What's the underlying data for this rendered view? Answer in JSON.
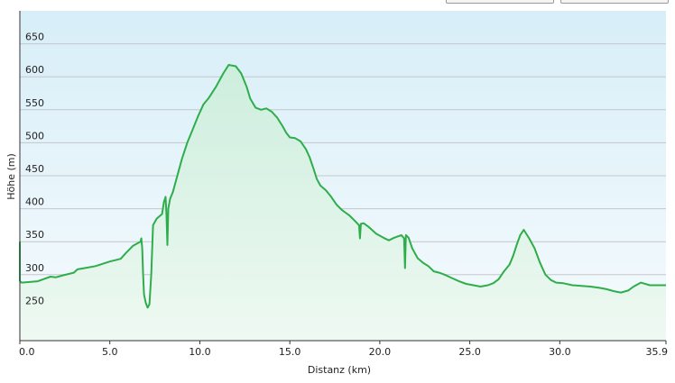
{
  "chart_data": {
    "type": "area",
    "title": "",
    "xlabel": "Distanz  (km)",
    "ylabel": "Höhe (m)",
    "xlim": [
      0,
      35.9
    ],
    "ylim": [
      200,
      700
    ],
    "x_ticks": [
      0,
      5,
      10,
      15,
      20,
      25,
      30,
      35.9
    ],
    "x_tick_labels": [
      "0.0",
      "5.0",
      "10.0",
      "15.0",
      "20.0",
      "25.0",
      "30.0",
      "35.9"
    ],
    "y_ticks": [
      250,
      300,
      350,
      400,
      450,
      500,
      550,
      600,
      650
    ],
    "y_tick_labels": [
      "250",
      "300",
      "350",
      "400",
      "450",
      "500",
      "550",
      "600",
      "650"
    ],
    "grid": "horizontal",
    "series": [
      {
        "color": "#2eae4a",
        "x": [
          0,
          0.1,
          1.0,
          1.7,
          2.0,
          2.4,
          3.0,
          3.2,
          3.6,
          4.2,
          5.0,
          5.6,
          5.9,
          6.3,
          6.7,
          6.75,
          6.8,
          6.85,
          6.9,
          7.0,
          7.1,
          7.2,
          7.3,
          7.4,
          7.6,
          7.9,
          8.0,
          8.1,
          8.15,
          8.2,
          8.25,
          8.35,
          8.5,
          8.7,
          9.0,
          9.3,
          9.6,
          9.9,
          10.2,
          10.5,
          10.9,
          11.3,
          11.6,
          12.0,
          12.3,
          12.6,
          12.8,
          13.1,
          13.4,
          13.7,
          14.0,
          14.3,
          14.6,
          14.8,
          15.0,
          15.3,
          15.6,
          15.9,
          16.1,
          16.3,
          16.5,
          16.7,
          17.0,
          17.3,
          17.6,
          17.9,
          18.3,
          18.6,
          18.85,
          18.9,
          18.95,
          19.1,
          19.4,
          19.8,
          20.2,
          20.5,
          20.8,
          21.2,
          21.35,
          21.4,
          21.45,
          21.6,
          21.8,
          22.1,
          22.4,
          22.7,
          23.0,
          23.3,
          23.6,
          24.0,
          24.4,
          24.8,
          25.2,
          25.6,
          26.0,
          26.3,
          26.6,
          26.9,
          27.2,
          27.4,
          27.6,
          27.8,
          28.0,
          28.3,
          28.6,
          28.9,
          29.2,
          29.5,
          29.8,
          30.2,
          30.7,
          31.2,
          31.7,
          32.2,
          32.6,
          33.0,
          33.4,
          33.8,
          34.1,
          34.5,
          35.0,
          35.5,
          35.9
        ],
        "values": [
          290,
          288,
          290,
          297,
          296,
          299,
          303,
          308,
          310,
          313,
          320,
          324,
          333,
          344,
          350,
          355,
          340,
          300,
          270,
          257,
          250,
          255,
          300,
          375,
          385,
          392,
          410,
          418,
          390,
          345,
          400,
          415,
          425,
          445,
          475,
          500,
          520,
          540,
          558,
          568,
          585,
          605,
          618,
          616,
          605,
          585,
          567,
          553,
          550,
          552,
          547,
          538,
          525,
          515,
          508,
          507,
          502,
          490,
          478,
          462,
          445,
          435,
          428,
          418,
          406,
          398,
          390,
          382,
          375,
          355,
          377,
          378,
          372,
          362,
          356,
          352,
          356,
          360,
          355,
          310,
          360,
          356,
          340,
          325,
          318,
          313,
          305,
          303,
          300,
          295,
          290,
          286,
          284,
          282,
          284,
          287,
          293,
          305,
          315,
          328,
          345,
          360,
          368,
          355,
          340,
          318,
          300,
          292,
          288,
          287,
          284,
          283,
          282,
          280,
          278,
          275,
          273,
          276,
          282,
          288,
          284,
          284,
          284
        ]
      }
    ]
  }
}
